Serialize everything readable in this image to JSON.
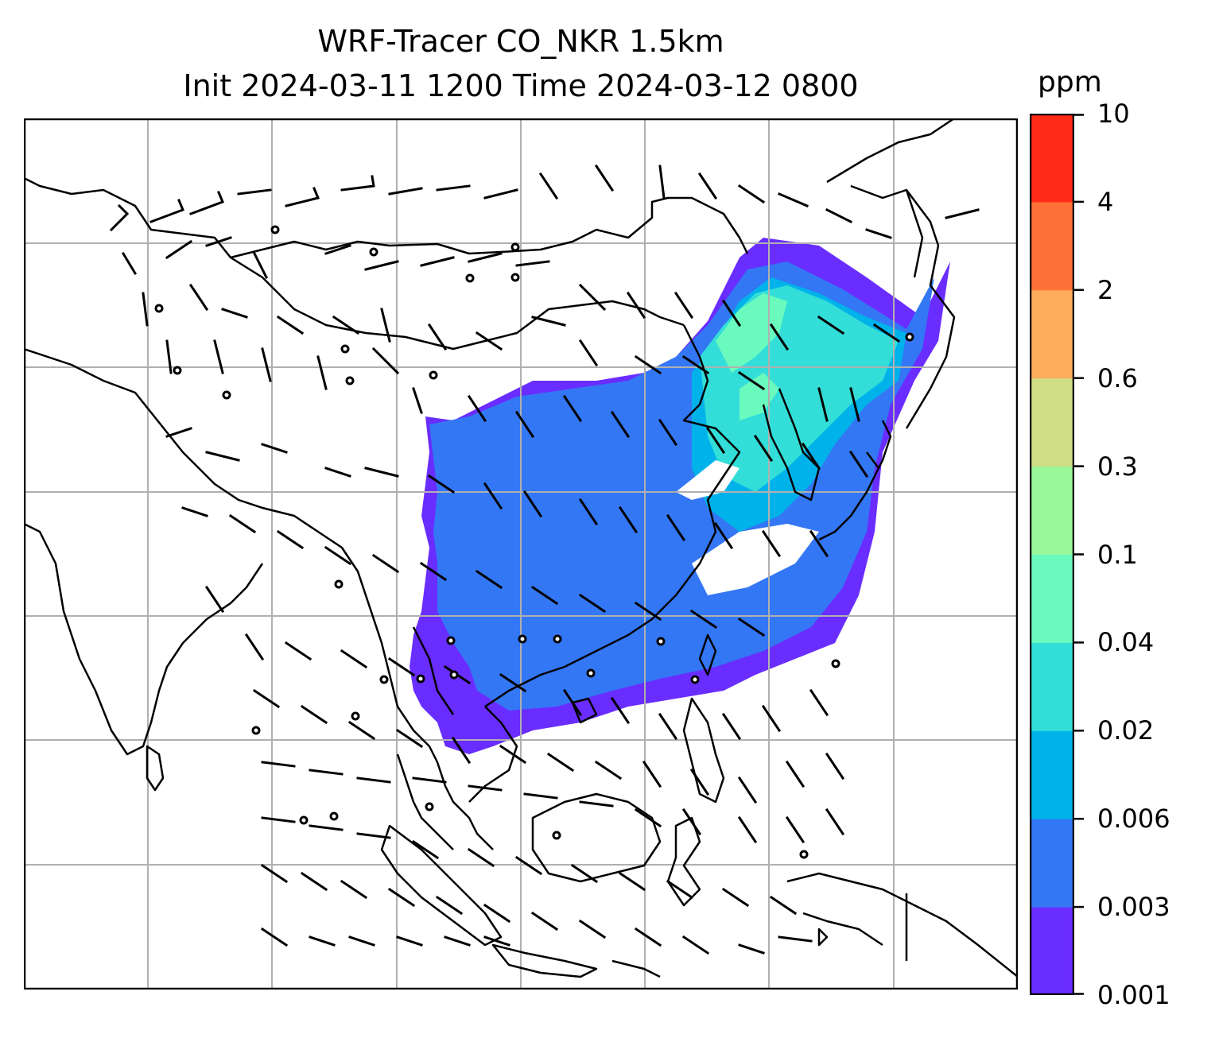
{
  "title": {
    "line1": "WRF-Tracer CO_NKR 1.5km",
    "line2": "Init 2024-03-11 1200 Time 2024-03-12 0800"
  },
  "colorbar": {
    "unit": "ppm",
    "levels": [
      "0.001",
      "0.003",
      "0.006",
      "0.02",
      "0.04",
      "0.1",
      "0.3",
      "0.6",
      "2",
      "4",
      "10"
    ],
    "colors": [
      "#6a2dff",
      "#3377f5",
      "#00b2ea",
      "#33ded8",
      "#6afabe",
      "#99f99a",
      "#cfdd85",
      "#ffad5d",
      "#ff7036",
      "#ff2a16"
    ]
  },
  "map": {
    "gridlines": true,
    "gridline_color": "#b0b0b0",
    "coastline_color": "#000000",
    "wind_barb_color": "#000000"
  }
}
